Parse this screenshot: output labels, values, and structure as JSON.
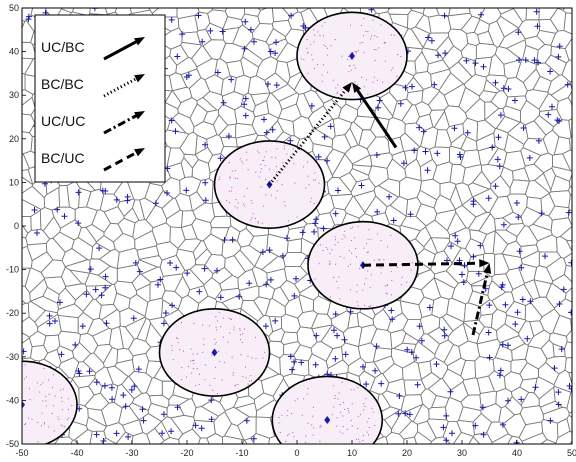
{
  "chart_data": {
    "type": "scatter",
    "title": "",
    "xlabel": "",
    "ylabel": "",
    "xlim": [
      -50,
      50
    ],
    "ylim": [
      -50,
      50
    ],
    "x_ticks": [
      -50,
      -40,
      -30,
      -20,
      -10,
      0,
      10,
      20,
      30,
      40,
      50
    ],
    "y_ticks": [
      -50,
      -40,
      -30,
      -20,
      -10,
      0,
      10,
      20,
      30,
      40,
      50
    ],
    "background": "voronoi-tessellation",
    "colors": {
      "cell_edges": "#7a7a7a",
      "users": "#1a1aaa",
      "cluster_points": "#cc44cc",
      "circle_fill": "#f8eef8",
      "arrows": "#000000"
    },
    "clusters": [
      {
        "center": [
          10,
          39
        ],
        "radius": 10
      },
      {
        "center": [
          -5,
          9.5
        ],
        "radius": 10
      },
      {
        "center": [
          12,
          -9
        ],
        "radius": 10
      },
      {
        "center": [
          -15,
          -29
        ],
        "radius": 10
      },
      {
        "center": [
          5.5,
          -44.5
        ],
        "radius": 10
      },
      {
        "center": [
          -50,
          -41
        ],
        "radius": 10
      }
    ],
    "arrows": [
      {
        "type": "UC/BC",
        "from": [
          18,
          18
        ],
        "to": [
          10,
          33
        ]
      },
      {
        "type": "BC/BC",
        "from": [
          -5,
          9.5
        ],
        "to": [
          10,
          33
        ]
      },
      {
        "type": "UC/UC",
        "from": [
          32,
          -25
        ],
        "to": [
          35,
          -8.5
        ]
      },
      {
        "type": "BC/UC",
        "from": [
          12,
          -9
        ],
        "to": [
          35,
          -8.5
        ]
      }
    ],
    "legend": {
      "position": "top-left",
      "entries": [
        {
          "label": "UC/BC",
          "style": "solid"
        },
        {
          "label": "BC/BC",
          "style": "dotted"
        },
        {
          "label": "UC/UC",
          "style": "dashdot"
        },
        {
          "label": "BC/UC",
          "style": "dashed"
        }
      ]
    }
  }
}
